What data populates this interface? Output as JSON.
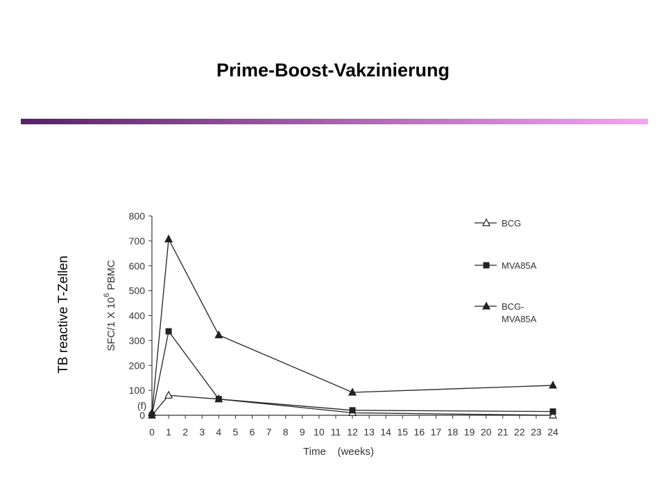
{
  "slide": {
    "title": "Prime-Boost-Vakzinierung",
    "side_label": "TB reactive T-Zellen",
    "bar_gradient": [
      "#5a1f6a",
      "#f7a3f5"
    ]
  },
  "chart_data": {
    "type": "line",
    "x": [
      0,
      1,
      4,
      12,
      24
    ],
    "xticks": [
      "0",
      "1",
      "2",
      "3",
      "4",
      "5",
      "6",
      "7",
      "8",
      "9",
      "10",
      "11",
      "12",
      "13",
      "14",
      "15",
      "16",
      "17",
      "18",
      "19",
      "20",
      "21",
      "22",
      "23",
      "24"
    ],
    "yticks": [
      "0",
      "100",
      "200",
      "300",
      "400",
      "500",
      "600",
      "700",
      "800"
    ],
    "xlim": [
      0,
      24
    ],
    "ylim": [
      0,
      800
    ],
    "xlabel": "Time    (weeks)",
    "ylabel_main": "SFC/1 X 10",
    "ylabel_sup": "6",
    "ylabel_tail": " PBMC",
    "annotation": "(f)",
    "legend_position": "top-right",
    "series": [
      {
        "name": "BCG",
        "marker": "triangle-open",
        "values": [
          0,
          80,
          65,
          10,
          0
        ]
      },
      {
        "name": "MVA85A",
        "marker": "square",
        "values": [
          0,
          337,
          65,
          20,
          15
        ]
      },
      {
        "name": "BCG-\nMVA85A",
        "marker": "triangle",
        "values": [
          10,
          707,
          322,
          92,
          120
        ]
      }
    ],
    "colors": {
      "line": "#222222",
      "axis": "#333333"
    }
  }
}
